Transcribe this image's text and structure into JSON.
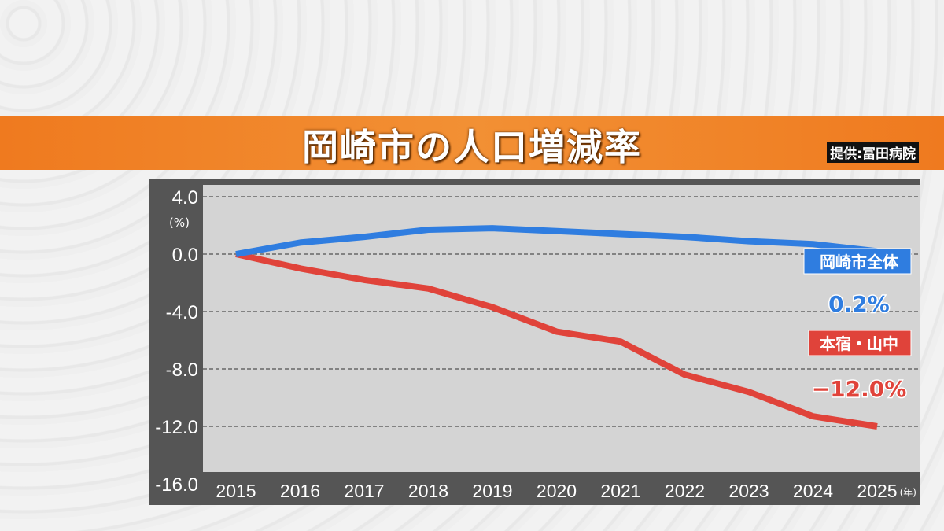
{
  "header": {
    "title": "岡崎市の人口増減率",
    "credit": "提供:冨田病院"
  },
  "colors": {
    "banner": "#f08326",
    "blue": "#2f7de0",
    "red": "#e0433a",
    "frame": "#555555",
    "plot": "#d4d4d4"
  },
  "chart_data": {
    "type": "line",
    "title": "岡崎市の人口増減率",
    "ylabel": "(%)",
    "xunit": "(年)",
    "x": [
      2015,
      2016,
      2017,
      2018,
      2019,
      2020,
      2021,
      2022,
      2023,
      2024,
      2025
    ],
    "xticks": [
      "2015",
      "2016",
      "2017",
      "2018",
      "2019",
      "2020",
      "2021",
      "2022",
      "2023",
      "2024",
      "2025"
    ],
    "yticks": [
      "4.0",
      "0.0",
      "-4.0",
      "-8.0",
      "-12.0",
      "-16.0"
    ],
    "ylim": [
      -16,
      4
    ],
    "grid": true,
    "series": [
      {
        "name": "岡崎市全体",
        "end_label": "0.2%",
        "color": "#2f7de0",
        "values": [
          0,
          0.8,
          1.2,
          1.7,
          1.8,
          1.6,
          1.4,
          1.2,
          0.9,
          0.7,
          0.2
        ]
      },
      {
        "name": "本宿・山中",
        "end_label": "−12.0%",
        "color": "#e0433a",
        "values": [
          0,
          -1.0,
          -1.8,
          -2.4,
          -3.7,
          -5.4,
          -6.1,
          -8.4,
          -9.6,
          -11.3,
          -12.0
        ]
      }
    ]
  }
}
